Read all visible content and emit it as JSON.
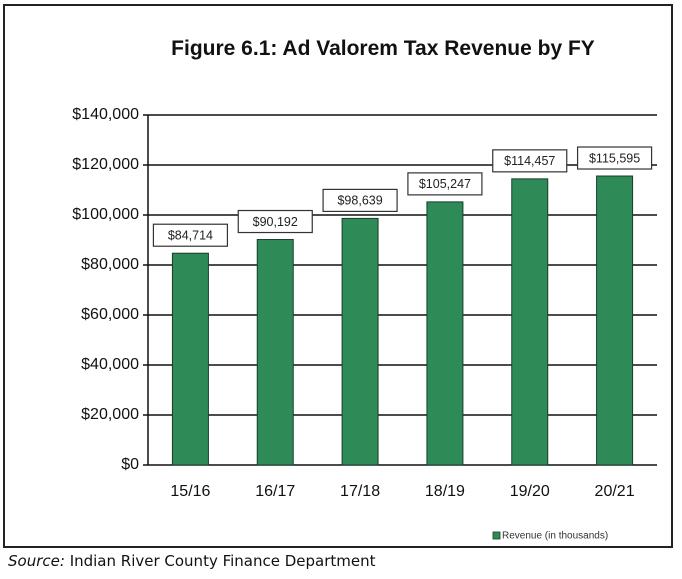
{
  "chart_data": {
    "type": "bar",
    "title": "Figure 6.1: Ad Valorem Tax Revenue by FY",
    "categories": [
      "15/16",
      "16/17",
      "17/18",
      "18/19",
      "19/20",
      "20/21"
    ],
    "series": [
      {
        "name": "Revenue (in thousands)",
        "color": "#2e8b57",
        "values": [
          84714,
          90192,
          98639,
          105247,
          114457,
          115595
        ],
        "value_labels": [
          "$84,714",
          "$90,192",
          "$98,639",
          "$105,247",
          "$114,457",
          "$115,595"
        ]
      }
    ],
    "ylim": [
      0,
      140000
    ],
    "yticks": [
      {
        "value": 0,
        "label": "$0"
      },
      {
        "value": 20000,
        "label": "$20,000"
      },
      {
        "value": 40000,
        "label": "$40,000"
      },
      {
        "value": 60000,
        "label": "$60,000"
      },
      {
        "value": 80000,
        "label": "$80,000"
      },
      {
        "value": 100000,
        "label": "$100,000"
      },
      {
        "value": 120000,
        "label": "$120,000"
      },
      {
        "value": 140000,
        "label": "$140,000"
      }
    ],
    "grid": true,
    "legend": "bottom-right"
  },
  "source_label": "Source:",
  "source": "Indian River County Finance Department"
}
